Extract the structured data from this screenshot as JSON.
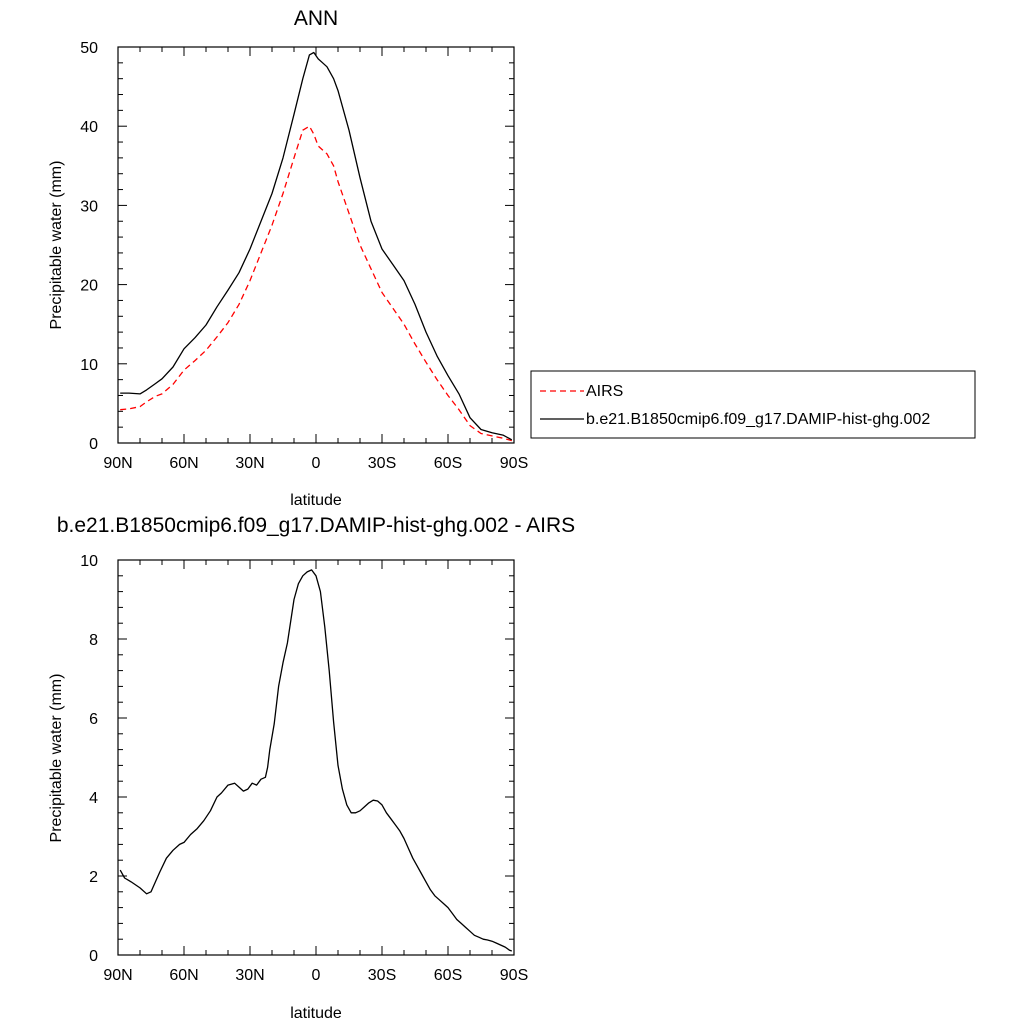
{
  "chart_data": [
    {
      "type": "line",
      "title": "ANN",
      "xlabel": "latitude",
      "ylabel": "Precipitable water (mm)",
      "xlim": [
        90,
        -90
      ],
      "ylim": [
        0,
        50
      ],
      "xticks": [
        {
          "value": 90,
          "label": "90N"
        },
        {
          "value": 60,
          "label": "60N"
        },
        {
          "value": 30,
          "label": "30N"
        },
        {
          "value": 0,
          "label": "0"
        },
        {
          "value": -30,
          "label": "30S"
        },
        {
          "value": -60,
          "label": "60S"
        },
        {
          "value": -90,
          "label": "90S"
        }
      ],
      "yticks": [
        {
          "value": 0,
          "label": "0"
        },
        {
          "value": 10,
          "label": "10"
        },
        {
          "value": 20,
          "label": "20"
        },
        {
          "value": 30,
          "label": "30"
        },
        {
          "value": 40,
          "label": "40"
        },
        {
          "value": 50,
          "label": "50"
        }
      ],
      "grid": false,
      "legend_position": "right",
      "series": [
        {
          "name": "AIRS",
          "color": "#ff0000",
          "dash": true,
          "x": [
            89,
            85,
            80,
            77,
            73,
            70,
            65,
            60,
            55,
            50,
            45,
            40,
            35,
            30,
            25,
            20,
            15,
            10,
            6,
            3,
            1,
            -1,
            -3,
            -5,
            -8,
            -10,
            -15,
            -20,
            -25,
            -30,
            -35,
            -40,
            -45,
            -50,
            -55,
            -60,
            -65,
            -70,
            -75,
            -80,
            -85,
            -89
          ],
          "y": [
            4.2,
            4.3,
            4.6,
            5.2,
            5.9,
            6.2,
            7.4,
            9.2,
            10.4,
            11.7,
            13.4,
            15.2,
            17.5,
            20.5,
            24,
            27.5,
            31.5,
            36,
            39.5,
            40,
            39,
            37.5,
            37,
            36.5,
            35,
            33,
            29,
            25,
            22,
            19,
            17,
            15,
            12.5,
            10.2,
            8,
            6,
            4.2,
            2.2,
            1.2,
            0.9,
            0.6,
            0.3
          ]
        },
        {
          "name": "b.e21.B1850cmip6.f09_g17.DAMIP-hist-ghg.002",
          "color": "#000000",
          "dash": false,
          "x": [
            89,
            85,
            80,
            77,
            73,
            70,
            65,
            60,
            55,
            50,
            45,
            40,
            35,
            30,
            25,
            20,
            15,
            10,
            6,
            3,
            1,
            -1,
            -3,
            -5,
            -8,
            -10,
            -15,
            -20,
            -25,
            -30,
            -35,
            -40,
            -45,
            -50,
            -55,
            -60,
            -65,
            -70,
            -75,
            -80,
            -85,
            -89
          ],
          "y": [
            6.3,
            6.3,
            6.2,
            6.7,
            7.5,
            8.1,
            9.6,
            11.9,
            13.3,
            14.9,
            17.2,
            19.3,
            21.5,
            24.5,
            28,
            31.5,
            36,
            41.5,
            46,
            49,
            49.3,
            48.5,
            48,
            47.5,
            46,
            44.5,
            39.5,
            33.5,
            28,
            24.5,
            22.5,
            20.5,
            17.5,
            14,
            11,
            8.5,
            6.2,
            3.2,
            1.7,
            1.3,
            1.0,
            0.4
          ]
        }
      ]
    },
    {
      "type": "line",
      "title": "b.e21.B1850cmip6.f09_g17.DAMIP-hist-ghg.002 - AIRS",
      "xlabel": "latitude",
      "ylabel": "Precipitable water (mm)",
      "xlim": [
        90,
        -90
      ],
      "ylim": [
        0,
        10
      ],
      "xticks": [
        {
          "value": 90,
          "label": "90N"
        },
        {
          "value": 60,
          "label": "60N"
        },
        {
          "value": 30,
          "label": "30N"
        },
        {
          "value": 0,
          "label": "0"
        },
        {
          "value": -30,
          "label": "30S"
        },
        {
          "value": -60,
          "label": "60S"
        },
        {
          "value": -90,
          "label": "90S"
        }
      ],
      "yticks": [
        {
          "value": 0,
          "label": "0"
        },
        {
          "value": 2,
          "label": "2"
        },
        {
          "value": 4,
          "label": "4"
        },
        {
          "value": 6,
          "label": "6"
        },
        {
          "value": 8,
          "label": "8"
        },
        {
          "value": 10,
          "label": "10"
        }
      ],
      "grid": false,
      "series": [
        {
          "color": "#000000",
          "dash": false,
          "x": [
            89,
            87,
            84,
            80,
            77,
            75,
            73,
            71,
            68,
            65,
            62,
            60,
            57,
            54,
            51,
            48,
            45,
            43,
            40,
            37,
            35,
            33,
            31,
            29,
            27,
            25,
            23,
            22,
            21,
            19,
            17,
            15,
            13,
            10,
            8,
            6,
            4,
            2,
            0,
            -2,
            -4,
            -6,
            -8,
            -10,
            -12,
            -14,
            -16,
            -18,
            -20,
            -22,
            -24,
            -26,
            -28,
            -30,
            -32,
            -34,
            -36,
            -38,
            -40,
            -42,
            -44,
            -46,
            -48,
            -50,
            -52,
            -54,
            -56,
            -58,
            -60,
            -62,
            -64,
            -66,
            -68,
            -70,
            -72,
            -74,
            -76,
            -78,
            -80,
            -82,
            -84,
            -86,
            -88,
            -89
          ],
          "y": [
            2.15,
            1.95,
            1.85,
            1.7,
            1.55,
            1.6,
            1.85,
            2.1,
            2.45,
            2.65,
            2.8,
            2.85,
            3.05,
            3.2,
            3.4,
            3.65,
            4.0,
            4.1,
            4.3,
            4.35,
            4.25,
            4.15,
            4.2,
            4.35,
            4.3,
            4.45,
            4.5,
            4.75,
            5.2,
            5.85,
            6.8,
            7.4,
            7.9,
            9.0,
            9.4,
            9.6,
            9.7,
            9.75,
            9.6,
            9.2,
            8.3,
            7.2,
            5.9,
            4.8,
            4.2,
            3.8,
            3.6,
            3.6,
            3.65,
            3.75,
            3.85,
            3.92,
            3.9,
            3.8,
            3.6,
            3.45,
            3.3,
            3.15,
            2.95,
            2.7,
            2.45,
            2.25,
            2.05,
            1.85,
            1.65,
            1.5,
            1.4,
            1.3,
            1.2,
            1.05,
            0.9,
            0.8,
            0.7,
            0.6,
            0.5,
            0.45,
            0.4,
            0.38,
            0.35,
            0.3,
            0.25,
            0.2,
            0.12,
            0.1
          ]
        }
      ]
    }
  ]
}
